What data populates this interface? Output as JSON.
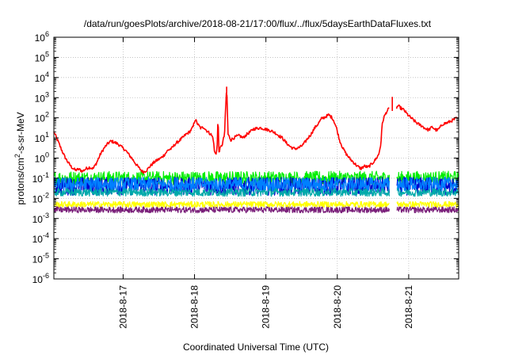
{
  "chart_data": {
    "type": "line",
    "title": "/data/run/goesPlots/archive/2018-08-21/17:00/flux/../flux/5daysEarthDataFluxes.txt",
    "xlabel": "Coordinated Universal Time (UTC)",
    "ylabel": {
      "pre": "protons/cm",
      "sup": "2",
      "post": "-s-sr-MeV"
    },
    "yscale": "log",
    "ylim_exp": [
      -6,
      6
    ],
    "ytick_exponents": [
      -6,
      -5,
      -4,
      -3,
      -2,
      -1,
      0,
      1,
      2,
      3,
      4,
      5,
      6
    ],
    "ytick_base": "10",
    "xlim_days": [
      0,
      5.67
    ],
    "x_ticks": [
      {
        "day": 0.97,
        "label": "2018-8-17"
      },
      {
        "day": 1.97,
        "label": "2018-8-18"
      },
      {
        "day": 2.97,
        "label": "2018-8-19"
      },
      {
        "day": 3.97,
        "label": "2018-8-20"
      },
      {
        "day": 4.97,
        "label": "2018-8-21"
      }
    ],
    "grid": true,
    "gap_days": [
      4.7,
      4.8
    ],
    "series": [
      {
        "color": "#ff0000",
        "points": [
          [
            0.0,
            20
          ],
          [
            0.05,
            8
          ],
          [
            0.1,
            3
          ],
          [
            0.15,
            1.2
          ],
          [
            0.2,
            0.6
          ],
          [
            0.25,
            0.35
          ],
          [
            0.3,
            0.25
          ],
          [
            0.35,
            0.28
          ],
          [
            0.4,
            0.22
          ],
          [
            0.45,
            0.3
          ],
          [
            0.5,
            0.35
          ],
          [
            0.55,
            0.3
          ],
          [
            0.6,
            0.6
          ],
          [
            0.65,
            1.5
          ],
          [
            0.7,
            3
          ],
          [
            0.75,
            5
          ],
          [
            0.8,
            7
          ],
          [
            0.85,
            6
          ],
          [
            0.9,
            5
          ],
          [
            0.95,
            3.5
          ],
          [
            1.0,
            2.5
          ],
          [
            1.05,
            1.5
          ],
          [
            1.1,
            0.9
          ],
          [
            1.15,
            0.5
          ],
          [
            1.2,
            0.3
          ],
          [
            1.25,
            0.2
          ],
          [
            1.3,
            0.25
          ],
          [
            1.35,
            0.4
          ],
          [
            1.4,
            0.6
          ],
          [
            1.45,
            0.8
          ],
          [
            1.5,
            1.0
          ],
          [
            1.55,
            1.5
          ],
          [
            1.6,
            2.5
          ],
          [
            1.65,
            3
          ],
          [
            1.7,
            5
          ],
          [
            1.75,
            7
          ],
          [
            1.8,
            10
          ],
          [
            1.85,
            15
          ],
          [
            1.9,
            20
          ],
          [
            1.95,
            35
          ],
          [
            1.98,
            90
          ],
          [
            2.0,
            60
          ],
          [
            2.03,
            40
          ],
          [
            2.06,
            30
          ],
          [
            2.1,
            35
          ],
          [
            2.13,
            25
          ],
          [
            2.16,
            20
          ],
          [
            2.2,
            15
          ],
          [
            2.23,
            10
          ],
          [
            2.25,
            2
          ],
          [
            2.27,
            1.5
          ],
          [
            2.29,
            5
          ],
          [
            2.3,
            200
          ],
          [
            2.31,
            2
          ],
          [
            2.33,
            3
          ],
          [
            2.36,
            5
          ],
          [
            2.39,
            15
          ],
          [
            2.4,
            100
          ],
          [
            2.42,
            3500
          ],
          [
            2.44,
            15
          ],
          [
            2.48,
            8
          ],
          [
            2.52,
            10
          ],
          [
            2.56,
            12
          ],
          [
            2.6,
            13
          ],
          [
            2.65,
            10
          ],
          [
            2.7,
            15
          ],
          [
            2.75,
            20
          ],
          [
            2.8,
            28
          ],
          [
            2.85,
            30
          ],
          [
            2.9,
            32
          ],
          [
            2.95,
            28
          ],
          [
            3.0,
            25
          ],
          [
            3.05,
            22
          ],
          [
            3.1,
            18
          ],
          [
            3.15,
            13
          ],
          [
            3.2,
            10
          ],
          [
            3.25,
            6
          ],
          [
            3.3,
            4
          ],
          [
            3.35,
            3
          ],
          [
            3.4,
            3
          ],
          [
            3.45,
            3.5
          ],
          [
            3.5,
            5
          ],
          [
            3.55,
            9
          ],
          [
            3.6,
            15
          ],
          [
            3.65,
            30
          ],
          [
            3.7,
            50
          ],
          [
            3.75,
            90
          ],
          [
            3.8,
            110
          ],
          [
            3.85,
            140
          ],
          [
            3.9,
            100
          ],
          [
            3.93,
            60
          ],
          [
            3.96,
            30
          ],
          [
            4.0,
            8
          ],
          [
            4.05,
            3
          ],
          [
            4.1,
            1.5
          ],
          [
            4.15,
            0.9
          ],
          [
            4.2,
            0.6
          ],
          [
            4.25,
            0.4
          ],
          [
            4.3,
            0.3
          ],
          [
            4.35,
            0.4
          ],
          [
            4.4,
            0.35
          ],
          [
            4.45,
            0.5
          ],
          [
            4.5,
            0.8
          ],
          [
            4.55,
            1.5
          ],
          [
            4.58,
            5
          ],
          [
            4.6,
            50
          ],
          [
            4.62,
            100
          ],
          [
            4.66,
            200
          ],
          [
            4.7,
            300
          ],
          [
            4.74,
            1100
          ],
          [
            4.78,
            250
          ],
          [
            4.82,
            400
          ],
          [
            4.86,
            300
          ],
          [
            4.9,
            250
          ],
          [
            4.95,
            150
          ],
          [
            5.0,
            100
          ],
          [
            5.05,
            70
          ],
          [
            5.1,
            50
          ],
          [
            5.15,
            40
          ],
          [
            5.2,
            30
          ],
          [
            5.25,
            25
          ],
          [
            5.3,
            35
          ],
          [
            5.35,
            25
          ],
          [
            5.38,
            25
          ],
          [
            5.45,
            50
          ],
          [
            5.5,
            55
          ],
          [
            5.55,
            65
          ],
          [
            5.6,
            80
          ],
          [
            5.65,
            100
          ]
        ],
        "noise": 0.15,
        "jitter_step": 0.0
      },
      {
        "color": "#00ee00",
        "level": 0.1,
        "noise": 0.35
      },
      {
        "color": "#0000cc",
        "level": 0.04,
        "noise": 0.45
      },
      {
        "color": "#0080ff",
        "level": 0.05,
        "noise": 0.35
      },
      {
        "color": "#00aaaa",
        "level": 0.02,
        "noise": 0.2
      },
      {
        "color": "#ffff00",
        "level": 0.005,
        "noise": 0.15
      },
      {
        "color": "#7a1f7a",
        "level": 0.0027,
        "noise": 0.15
      }
    ]
  }
}
